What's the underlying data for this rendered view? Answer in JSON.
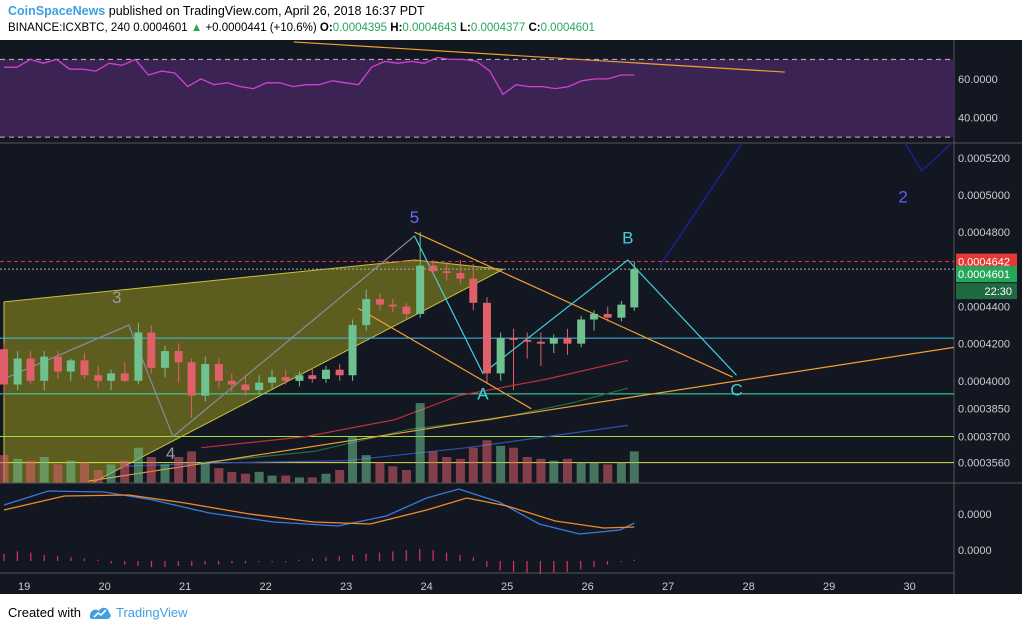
{
  "header": {
    "publisher": "CoinSpaceNews",
    "published_text": "published on TradingView.com, April 26, 2018 16:37 PDT",
    "symbol": "BINANCE:ICXBTC, 240",
    "last": "0.0004601",
    "change": "+0.0000441 (+10.6%)",
    "o_label": "O:",
    "o": "0.0004395",
    "h_label": "H:",
    "h": "0.0004643",
    "l_label": "L:",
    "l": "0.0004377",
    "c_label": "C:",
    "c": "0.0004601"
  },
  "footer": {
    "created_with": "Created with",
    "brand": "TradingView"
  },
  "colors": {
    "background": "#131722",
    "up": "#6fc28f",
    "down": "#e0606a",
    "rsi": "#d040d0",
    "rsi_band": "#3b2454",
    "trend": "#f0a030",
    "wave": "#40d0e0",
    "projection": "#2020b0",
    "price_tag": "#e53935",
    "last_tag": "#26a65b"
  },
  "chart_data": {
    "type": "candlestick",
    "interval": "240",
    "x_tick_labels": [
      "19",
      "20",
      "21",
      "22",
      "23",
      "24",
      "25",
      "26",
      "27",
      "28",
      "29",
      "30"
    ],
    "x_range_days": [
      18.7,
      30.55
    ],
    "price_axis": {
      "labels": [
        "0.0005200",
        "0.0005000",
        "0.0004800",
        "0.0004400",
        "0.0004200",
        "0.0004000",
        "0.0003850",
        "0.0003700",
        "0.0003560"
      ],
      "ylim": [
        0.000345,
        0.000528
      ]
    },
    "rsi_axis": {
      "labels": [
        "60.0000",
        "40.0000"
      ],
      "ylim": [
        27,
        80
      ],
      "band": [
        30,
        70
      ]
    },
    "macd_axis": {
      "labels": [
        "0.0000",
        "0.0000"
      ]
    },
    "price_tags": {
      "high_line": "0.0004642",
      "last": "0.0004601",
      "countdown": "22:30"
    },
    "candles": [
      {
        "t": 18.75,
        "o": 0.000417,
        "h": 0.00042,
        "l": 0.000392,
        "c": 0.000398
      },
      {
        "t": 18.92,
        "o": 0.000398,
        "h": 0.000416,
        "l": 0.000395,
        "c": 0.000412
      },
      {
        "t": 19.08,
        "o": 0.000412,
        "h": 0.000416,
        "l": 0.000398,
        "c": 0.0004
      },
      {
        "t": 19.25,
        "o": 0.0004,
        "h": 0.000416,
        "l": 0.000395,
        "c": 0.000413
      },
      {
        "t": 19.42,
        "o": 0.000413,
        "h": 0.000416,
        "l": 0.000401,
        "c": 0.000405
      },
      {
        "t": 19.58,
        "o": 0.000405,
        "h": 0.000412,
        "l": 0.0004,
        "c": 0.000411
      },
      {
        "t": 19.75,
        "o": 0.000411,
        "h": 0.000415,
        "l": 0.000401,
        "c": 0.000403
      },
      {
        "t": 19.92,
        "o": 0.000403,
        "h": 0.000408,
        "l": 0.000396,
        "c": 0.0004
      },
      {
        "t": 20.08,
        "o": 0.0004,
        "h": 0.000406,
        "l": 0.000395,
        "c": 0.000404
      },
      {
        "t": 20.25,
        "o": 0.000404,
        "h": 0.00041,
        "l": 0.000399,
        "c": 0.0004
      },
      {
        "t": 20.42,
        "o": 0.0004,
        "h": 0.000431,
        "l": 0.000398,
        "c": 0.000426
      },
      {
        "t": 20.58,
        "o": 0.000426,
        "h": 0.00043,
        "l": 0.000404,
        "c": 0.000407
      },
      {
        "t": 20.75,
        "o": 0.000407,
        "h": 0.000419,
        "l": 0.000402,
        "c": 0.000416
      },
      {
        "t": 20.92,
        "o": 0.000416,
        "h": 0.00042,
        "l": 0.000399,
        "c": 0.00041
      },
      {
        "t": 21.08,
        "o": 0.00041,
        "h": 0.000412,
        "l": 0.00038,
        "c": 0.000392
      },
      {
        "t": 21.25,
        "o": 0.000392,
        "h": 0.000413,
        "l": 0.000389,
        "c": 0.000409
      },
      {
        "t": 21.42,
        "o": 0.000409,
        "h": 0.000412,
        "l": 0.000396,
        "c": 0.0004
      },
      {
        "t": 21.58,
        "o": 0.0004,
        "h": 0.000404,
        "l": 0.000394,
        "c": 0.000398
      },
      {
        "t": 21.75,
        "o": 0.000398,
        "h": 0.000403,
        "l": 0.000392,
        "c": 0.000395
      },
      {
        "t": 21.92,
        "o": 0.000395,
        "h": 0.000403,
        "l": 0.000393,
        "c": 0.000399
      },
      {
        "t": 22.08,
        "o": 0.000399,
        "h": 0.000406,
        "l": 0.000396,
        "c": 0.000402
      },
      {
        "t": 22.25,
        "o": 0.000402,
        "h": 0.000406,
        "l": 0.000398,
        "c": 0.0004
      },
      {
        "t": 22.42,
        "o": 0.0004,
        "h": 0.000405,
        "l": 0.000397,
        "c": 0.000403
      },
      {
        "t": 22.58,
        "o": 0.000403,
        "h": 0.000407,
        "l": 0.000399,
        "c": 0.000401
      },
      {
        "t": 22.75,
        "o": 0.000401,
        "h": 0.000408,
        "l": 0.000399,
        "c": 0.000406
      },
      {
        "t": 22.92,
        "o": 0.000406,
        "h": 0.000409,
        "l": 0.0004,
        "c": 0.000403
      },
      {
        "t": 23.08,
        "o": 0.000403,
        "h": 0.000433,
        "l": 0.0004,
        "c": 0.00043
      },
      {
        "t": 23.25,
        "o": 0.00043,
        "h": 0.000449,
        "l": 0.000427,
        "c": 0.000444
      },
      {
        "t": 23.42,
        "o": 0.000444,
        "h": 0.000447,
        "l": 0.000438,
        "c": 0.000441
      },
      {
        "t": 23.58,
        "o": 0.000441,
        "h": 0.000444,
        "l": 0.000437,
        "c": 0.00044
      },
      {
        "t": 23.75,
        "o": 0.00044,
        "h": 0.000442,
        "l": 0.000433,
        "c": 0.000436
      },
      {
        "t": 23.92,
        "o": 0.000436,
        "h": 0.00048,
        "l": 0.000434,
        "c": 0.000462
      },
      {
        "t": 24.08,
        "o": 0.000462,
        "h": 0.000465,
        "l": 0.000457,
        "c": 0.000459
      },
      {
        "t": 24.25,
        "o": 0.000459,
        "h": 0.000464,
        "l": 0.000454,
        "c": 0.000458
      },
      {
        "t": 24.42,
        "o": 0.000458,
        "h": 0.000465,
        "l": 0.000452,
        "c": 0.000455
      },
      {
        "t": 24.58,
        "o": 0.000455,
        "h": 0.000463,
        "l": 0.000438,
        "c": 0.000442
      },
      {
        "t": 24.75,
        "o": 0.000442,
        "h": 0.000445,
        "l": 0.000399,
        "c": 0.000404
      },
      {
        "t": 24.92,
        "o": 0.000404,
        "h": 0.000426,
        "l": 0.0004,
        "c": 0.000423
      },
      {
        "t": 25.08,
        "o": 0.000423,
        "h": 0.000428,
        "l": 0.000395,
        "c": 0.000422
      },
      {
        "t": 25.25,
        "o": 0.000422,
        "h": 0.000426,
        "l": 0.000412,
        "c": 0.000421
      },
      {
        "t": 25.42,
        "o": 0.000421,
        "h": 0.000426,
        "l": 0.000408,
        "c": 0.00042
      },
      {
        "t": 25.58,
        "o": 0.00042,
        "h": 0.000425,
        "l": 0.000415,
        "c": 0.000423
      },
      {
        "t": 25.75,
        "o": 0.000423,
        "h": 0.000428,
        "l": 0.000414,
        "c": 0.00042
      },
      {
        "t": 25.92,
        "o": 0.00042,
        "h": 0.000435,
        "l": 0.000418,
        "c": 0.000433
      },
      {
        "t": 26.08,
        "o": 0.000433,
        "h": 0.000438,
        "l": 0.000427,
        "c": 0.000436
      },
      {
        "t": 26.25,
        "o": 0.000436,
        "h": 0.00044,
        "l": 0.000432,
        "c": 0.000434
      },
      {
        "t": 26.42,
        "o": 0.000434,
        "h": 0.000443,
        "l": 0.000432,
        "c": 0.000441
      },
      {
        "t": 26.58,
        "o": 0.0004395,
        "h": 0.0004643,
        "l": 0.0004377,
        "c": 0.0004601
      }
    ],
    "annotations": [
      {
        "text": "5",
        "t": 23.85,
        "price": 0.000485,
        "color": "#6a6af0"
      },
      {
        "text": "3",
        "t": 20.15,
        "price": 0.000442,
        "color": "#9a9aa0"
      },
      {
        "text": "4",
        "t": 20.82,
        "price": 0.000358,
        "color": "#9a9aa0"
      },
      {
        "text": "A",
        "t": 24.7,
        "price": 0.00039,
        "color": "#40d0e0"
      },
      {
        "text": "B",
        "t": 26.5,
        "price": 0.000474,
        "color": "#40d0e0"
      },
      {
        "text": "C",
        "t": 27.85,
        "price": 0.000392,
        "color": "#40d0e0"
      },
      {
        "text": "2",
        "t": 29.92,
        "price": 0.000496,
        "color": "#6060f0"
      }
    ]
  }
}
